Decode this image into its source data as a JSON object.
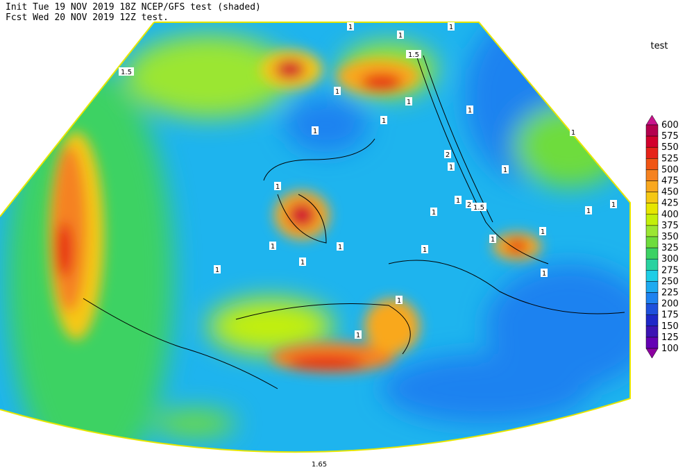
{
  "header": {
    "line1": "Init  Tue 19 NOV 2019 18Z  NCEP/GFS test (shaded)",
    "line2": "Fcst Wed 20 NOV 2019 12Z  test."
  },
  "legend": {
    "title": "test",
    "levels": [
      600,
      575,
      550,
      525,
      500,
      475,
      450,
      425,
      400,
      375,
      350,
      325,
      300,
      275,
      250,
      225,
      200,
      175,
      150,
      125,
      100
    ],
    "colors": [
      "#c8148c",
      "#b4004e",
      "#d2002d",
      "#e62319",
      "#f05514",
      "#f58220",
      "#f9a81f",
      "#f5c814",
      "#e6e600",
      "#c3ef0a",
      "#9be632",
      "#6edc3c",
      "#3cd264",
      "#28d2a0",
      "#1ecde6",
      "#1eaaf0",
      "#1e82f0",
      "#1e50dc",
      "#1e28c8",
      "#3c14b4",
      "#6400b4",
      "#8c00a0"
    ]
  },
  "contour_labels": [
    "1.5",
    "1",
    "1",
    "1.5",
    "1",
    "1",
    "1",
    "1",
    "1",
    "1",
    "1",
    "2",
    "1",
    "1",
    "1",
    "1",
    "2",
    "1.5",
    "1",
    "1",
    "1",
    "1",
    "1",
    "1",
    "1",
    "1",
    "1",
    "1",
    "1",
    "1",
    "1",
    "1.65"
  ]
}
